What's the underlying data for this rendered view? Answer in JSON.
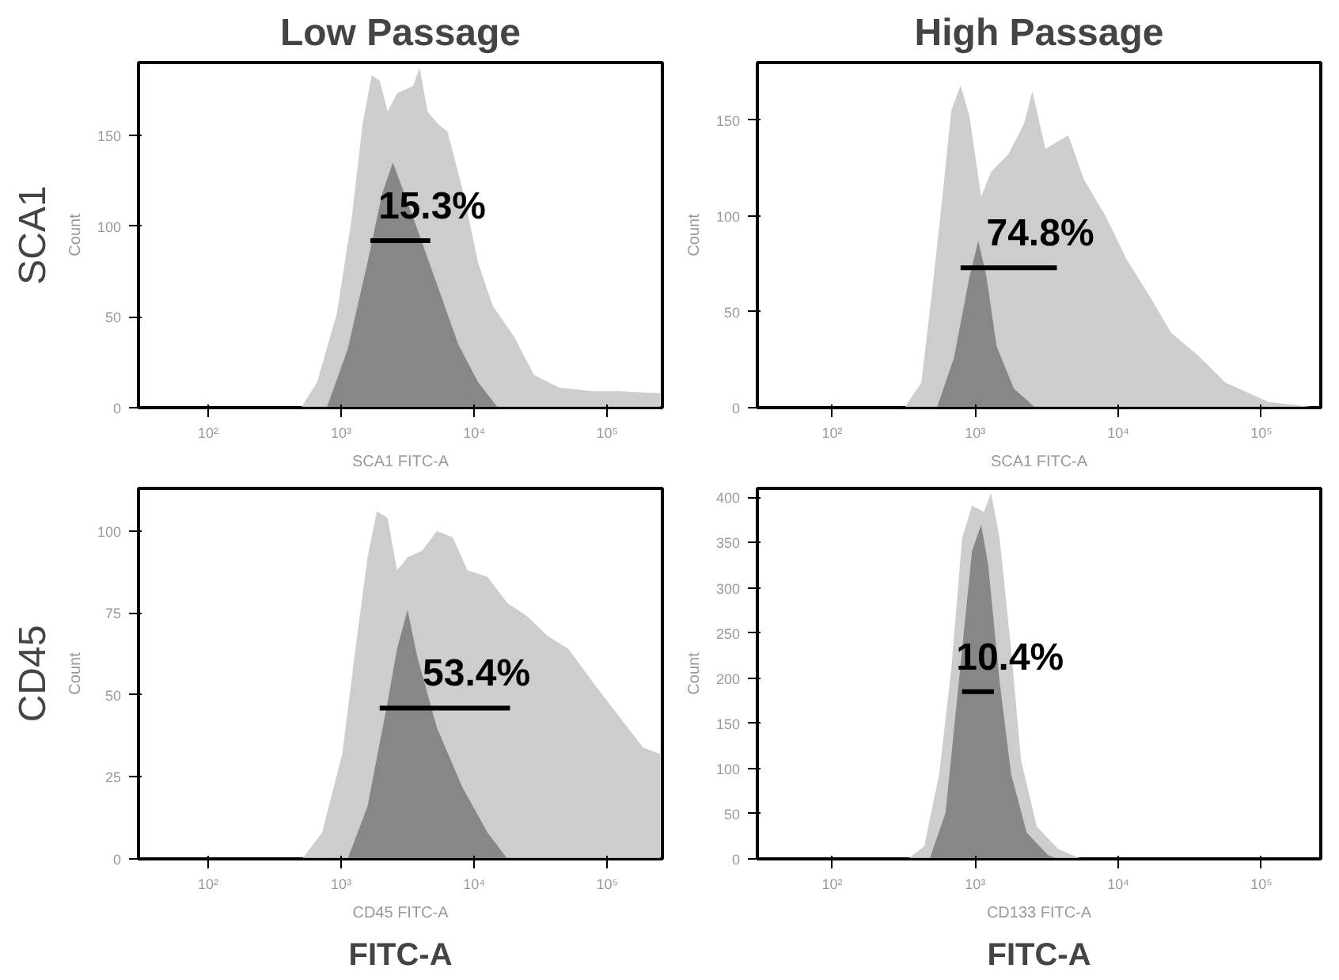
{
  "chart_data": [
    {
      "type": "area",
      "title": "Low Passage",
      "xlabel": "SCA1 FITC-A",
      "ylabel": "Count",
      "log": "x",
      "xlim": [
        30,
        260000
      ],
      "xticks": [
        {
          "value": 100,
          "label": "10²"
        },
        {
          "value": 1000,
          "label": "10³"
        },
        {
          "value": 10000,
          "label": "10⁴"
        },
        {
          "value": 100000,
          "label": "10⁵"
        }
      ],
      "ylim": [
        0,
        190
      ],
      "yticks": [
        0,
        50,
        100,
        150
      ],
      "series": [
        {
          "color": "#c8c8c8",
          "x": [
            500,
            660,
            930,
            1200,
            1450,
            1700,
            1950,
            2240,
            2630,
            3470,
            3890,
            4470,
            5370,
            6310,
            8320,
            10700,
            13800,
            20000,
            28200,
            43700,
            79400,
            123000,
            250000
          ],
          "values": [
            0,
            14,
            52,
            104,
            156,
            183,
            180,
            163,
            173,
            177,
            187,
            163,
            156,
            152,
            118,
            80,
            56,
            39,
            18,
            11,
            9,
            9,
            8
          ]
        },
        {
          "color": "#808080",
          "x": [
            780,
            1120,
            1580,
            2040,
            2450,
            2880,
            3800,
            5370,
            7590,
            10700,
            15100
          ],
          "values": [
            0,
            32,
            80,
            118,
            135,
            121,
            97,
            66,
            35,
            14,
            0
          ]
        },
        {
          "type": "line",
          "color": "#000000",
          "x": [
            1660,
            4680
          ],
          "values": [
            92,
            92
          ]
        }
      ],
      "annotations": [
        {
          "text": "15.3%",
          "x": 2790,
          "y": 92
        },
        "SCA1"
      ]
    },
    {
      "type": "area",
      "xlabel": "CD45 FITC-A",
      "ylabel": "Count",
      "log": "x",
      "xlim": [
        30,
        260000
      ],
      "xticks": [
        {
          "value": 100,
          "label": "10²"
        },
        {
          "value": 1000,
          "label": "10³"
        },
        {
          "value": 10000,
          "label": "10⁴"
        },
        {
          "value": 100000,
          "label": "10⁵"
        }
      ],
      "ylim": [
        0,
        113
      ],
      "yticks": [
        0,
        25,
        50,
        75,
        100
      ],
      "series": [
        {
          "color": "#c8c8c8",
          "x": [
            510,
            720,
            1020,
            1320,
            1580,
            1860,
            2240,
            2630,
            3160,
            4070,
            5250,
            6920,
            8910,
            12600,
            17800,
            25100,
            35500,
            51300,
            77600,
            120000,
            186000,
            250000
          ],
          "values": [
            0,
            8,
            32,
            68,
            92,
            106,
            104,
            88,
            92,
            94,
            100,
            98,
            88,
            86,
            78,
            74,
            68,
            64,
            54,
            44,
            34,
            32
          ]
        },
        {
          "color": "#808080",
          "x": [
            1120,
            1580,
            2240,
            2630,
            3160,
            3720,
            5250,
            8130,
            12600,
            17800
          ],
          "values": [
            0,
            16,
            48,
            64,
            76,
            62,
            40,
            22,
            8,
            0
          ]
        },
        {
          "type": "line",
          "color": "#000000",
          "x": [
            1950,
            18600
          ],
          "values": [
            46,
            46
          ]
        }
      ],
      "annotations": [
        {
          "text": "53.4%",
          "x": 6020,
          "y": 46
        },
        "CD45",
        "FITC-A"
      ]
    },
    {
      "type": "area",
      "title": "High Passage",
      "xlabel": "SCA1 FITC-A",
      "ylabel": "Count",
      "log": "x",
      "xlim": [
        30,
        260000
      ],
      "xticks": [
        {
          "value": 100,
          "label": "10²"
        },
        {
          "value": 1000,
          "label": "10³"
        },
        {
          "value": 10000,
          "label": "10⁴"
        },
        {
          "value": 100000,
          "label": "10⁵"
        }
      ],
      "ylim": [
        0,
        180
      ],
      "yticks": [
        0,
        50,
        100,
        150
      ],
      "series": [
        {
          "color": "#c8c8c8",
          "x": [
            320,
            420,
            500,
            590,
            680,
            790,
            910,
            1100,
            1290,
            1700,
            2190,
            2510,
            3090,
            4470,
            5750,
            8130,
            11500,
            16600,
            23400,
            36300,
            56200,
            112000,
            250000
          ],
          "values": [
            0,
            13,
            61,
            110,
            155,
            168,
            152,
            110,
            123,
            132,
            148,
            165,
            135,
            142,
            119,
            100,
            77,
            58,
            39,
            27,
            13,
            3,
            0
          ]
        },
        {
          "color": "#808080",
          "x": [
            540,
            710,
            910,
            1050,
            1200,
            1410,
            1860,
            2630
          ],
          "values": [
            0,
            26,
            68,
            87,
            68,
            32,
            10,
            0
          ]
        },
        {
          "type": "line",
          "color": "#000000",
          "x": [
            790,
            3720
          ],
          "values": [
            73,
            73
          ]
        }
      ],
      "annotations": [
        {
          "text": "74.8%",
          "x": 1710,
          "y": 73
        }
      ]
    },
    {
      "type": "area",
      "xlabel": "CD133 FITC-A",
      "ylabel": "Count",
      "log": "x",
      "xlim": [
        30,
        260000
      ],
      "xticks": [
        {
          "value": 100,
          "label": "10²"
        },
        {
          "value": 1000,
          "label": "10³"
        },
        {
          "value": 10000,
          "label": "10⁴"
        },
        {
          "value": 100000,
          "label": "10⁵"
        }
      ],
      "ylim": [
        0,
        410
      ],
      "yticks": [
        0,
        50,
        100,
        150,
        200,
        250,
        300,
        350,
        400
      ],
      "series": [
        {
          "color": "#c8c8c8",
          "x": [
            340,
            440,
            560,
            680,
            810,
            950,
            1150,
            1290,
            1480,
            1780,
            2090,
            2690,
            3800,
            5500
          ],
          "values": [
            0,
            14,
            94,
            210,
            355,
            391,
            384,
            405,
            355,
            232,
            109,
            36,
            11,
            0
          ]
        },
        {
          "color": "#808080",
          "x": [
            480,
            620,
            810,
            950,
            1100,
            1230,
            1480,
            1780,
            2290,
            3240,
            3800
          ],
          "values": [
            0,
            51,
            232,
            341,
            370,
            326,
            196,
            94,
            29,
            4,
            0
          ]
        },
        {
          "type": "line",
          "color": "#000000",
          "x": [
            810,
            1350
          ],
          "values": [
            185,
            185
          ]
        }
      ],
      "annotations": [
        {
          "text": "10.4%",
          "x": 1050,
          "y": 185
        },
        "FITC-A"
      ]
    }
  ]
}
